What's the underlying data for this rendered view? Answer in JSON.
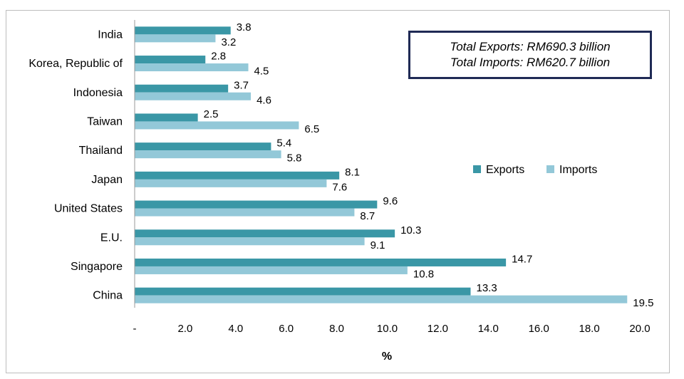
{
  "chart_data": {
    "type": "bar",
    "orientation": "horizontal",
    "categories": [
      "India",
      "Korea, Republic of",
      "Indonesia",
      "Taiwan",
      "Thailand",
      "Japan",
      "United States",
      "E.U.",
      "Singapore",
      "China"
    ],
    "series": [
      {
        "name": "Exports",
        "color": "#3a97a6",
        "values": [
          3.8,
          2.8,
          3.7,
          2.5,
          5.4,
          8.1,
          9.6,
          10.3,
          14.7,
          13.3
        ]
      },
      {
        "name": "Imports",
        "color": "#93c8d8",
        "values": [
          3.2,
          4.5,
          4.6,
          6.5,
          5.8,
          7.6,
          8.7,
          9.1,
          10.8,
          19.5
        ]
      }
    ],
    "value_labels": {
      "Exports": [
        "3.8",
        "2.8",
        "3.7",
        "2.5",
        "5.4",
        "8.1",
        "9.6",
        "10.3",
        "14.7",
        "13.3"
      ],
      "Imports": [
        "3.2",
        "4.5",
        "4.6",
        "6.5",
        "5.8",
        "7.6",
        "8.7",
        "9.1",
        "10.8",
        "19.5"
      ]
    },
    "xticks": [
      "-",
      "2.0",
      "4.0",
      "6.0",
      "8.0",
      "10.0",
      "12.0",
      "14.0",
      "16.0",
      "18.0",
      "20.0"
    ],
    "xlim": [
      0,
      20
    ],
    "xlabel": "%",
    "ylabel": "",
    "legend_position": "right-middle"
  },
  "summary_box": {
    "exports_line": "Total Exports: RM690.3  billion",
    "imports_line": "Total Imports: RM620.7  billion"
  }
}
